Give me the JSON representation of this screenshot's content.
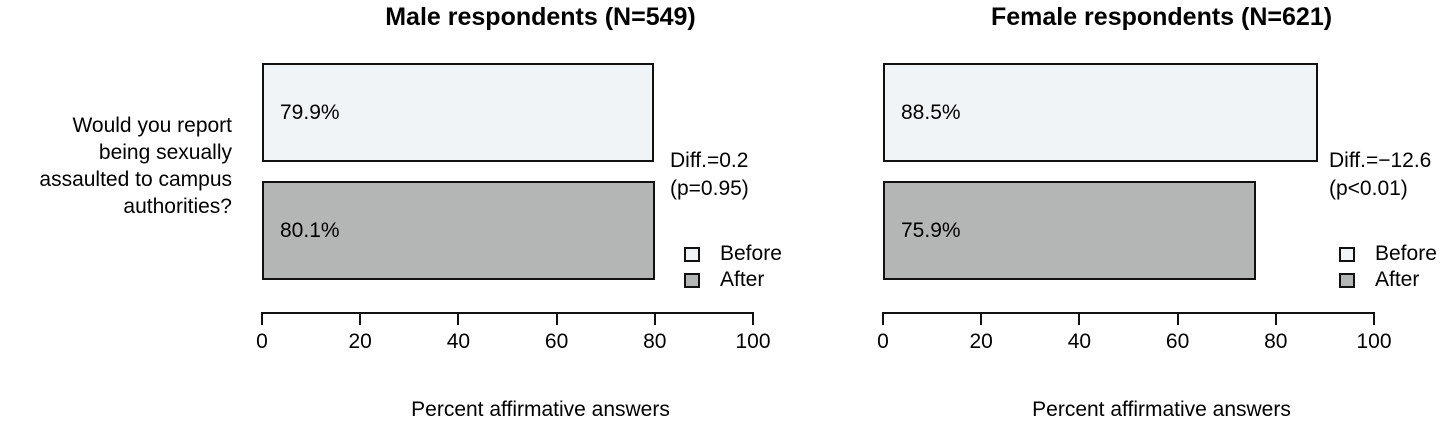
{
  "figure": {
    "question_lines": [
      "Would you report",
      "being sexually",
      "assaulted to campus",
      "authorities?"
    ],
    "legend": {
      "before_label": "Before",
      "after_label": "After"
    }
  },
  "colors": {
    "before_fill": "#f1f4f6",
    "after_fill": "#b4b6b5",
    "border": "#111111",
    "text": "#000000"
  },
  "chart_data": [
    {
      "type": "bar",
      "orientation": "horizontal",
      "title": "Male respondents (N=549)",
      "question": "Would you report being sexually assaulted to campus authorities?",
      "categories": [
        "Before",
        "After"
      ],
      "values": [
        79.9,
        80.1
      ],
      "value_labels": [
        "79.9%",
        "80.1%"
      ],
      "xlabel": "Percent affirmative answers",
      "xlim": [
        0,
        100
      ],
      "xticks": [
        0,
        20,
        40,
        60,
        80,
        100
      ],
      "annotation": {
        "diff": "Diff.=0.2",
        "p": "(p=0.95)"
      },
      "legend": [
        "Before",
        "After"
      ],
      "legend_position": "right",
      "grid": false
    },
    {
      "type": "bar",
      "orientation": "horizontal",
      "title": "Female respondents (N=621)",
      "question": "Would you report being sexually assaulted to campus authorities?",
      "categories": [
        "Before",
        "After"
      ],
      "values": [
        88.5,
        75.9
      ],
      "value_labels": [
        "88.5%",
        "75.9%"
      ],
      "xlabel": "Percent affirmative answers",
      "xlim": [
        0,
        100
      ],
      "xticks": [
        0,
        20,
        40,
        60,
        80,
        100
      ],
      "annotation": {
        "diff": "Diff.=−12.6",
        "p": "(p<0.01)"
      },
      "legend": [
        "Before",
        "After"
      ],
      "legend_position": "right",
      "grid": false
    }
  ]
}
